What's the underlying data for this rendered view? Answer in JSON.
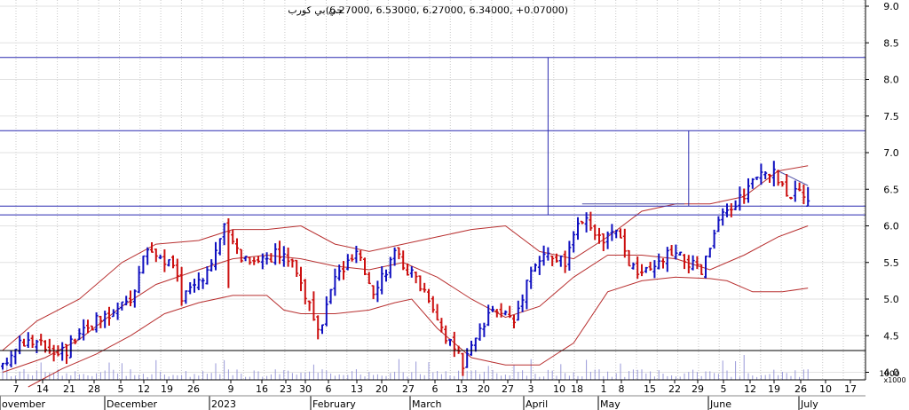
{
  "header": {
    "instrument": "جي بي كورب",
    "quote": "(6.27000, 6.53000, 6.27000, 6.34000, +0.07000)"
  },
  "chart_data": {
    "type": "ohlc-bar",
    "y_axis": {
      "ylim": [
        3.8,
        9.2
      ],
      "ticks": [
        4.0,
        4.5,
        5.0,
        5.5,
        6.0,
        6.5,
        7.0,
        7.5,
        8.0,
        8.5,
        9.0
      ],
      "tick_labels": [
        "4.0",
        "4.5",
        "5.0",
        "5.5",
        "6.0",
        "6.5",
        "7.0",
        "7.5",
        "8.0",
        "8.5",
        "9.0"
      ],
      "position": "right"
    },
    "volume_axis": {
      "label": "x1000",
      "top_label": "1000"
    },
    "x_axis": {
      "day_labels": [
        "7",
        "14",
        "21",
        "28",
        "5",
        "12",
        "19",
        "26",
        "9",
        "16",
        "23",
        "30",
        "6",
        "13",
        "20",
        "27",
        "6",
        "13",
        "20",
        "27",
        "3",
        "10",
        "18",
        "1",
        "8",
        "15",
        "22",
        "29",
        "5",
        "12",
        "19",
        "26",
        "10",
        "17"
      ],
      "month_labels": [
        "ovember",
        "December",
        "2023",
        "February",
        "March",
        "April",
        "May",
        "June",
        "July"
      ]
    },
    "horizontal_lines": [
      8.3,
      7.3,
      6.27,
      6.15
    ],
    "vertical_segments": [
      {
        "x_bar": 128,
        "y_from": 6.15,
        "y_to": 8.3
      },
      {
        "x_bar": 161,
        "y_from": 6.27,
        "y_to": 7.3
      }
    ],
    "trend_segments": [
      {
        "from": [
          182,
          6.75
        ],
        "to": [
          189,
          6.55
        ]
      },
      {
        "from": [
          136,
          6.3
        ],
        "to": [
          160,
          6.3
        ]
      }
    ],
    "bollinger": {
      "upper": [
        [
          0,
          4.3
        ],
        [
          8,
          4.7
        ],
        [
          18,
          5.0
        ],
        [
          28,
          5.5
        ],
        [
          36,
          5.75
        ],
        [
          46,
          5.8
        ],
        [
          54,
          5.95
        ],
        [
          62,
          5.95
        ],
        [
          70,
          6.0
        ],
        [
          78,
          5.75
        ],
        [
          86,
          5.65
        ],
        [
          94,
          5.75
        ],
        [
          102,
          5.85
        ],
        [
          110,
          5.95
        ],
        [
          118,
          6.0
        ],
        [
          126,
          5.65
        ],
        [
          134,
          5.55
        ],
        [
          142,
          5.85
        ],
        [
          150,
          6.2
        ],
        [
          158,
          6.3
        ],
        [
          166,
          6.3
        ],
        [
          174,
          6.4
        ],
        [
          182,
          6.75
        ],
        [
          189,
          6.82
        ]
      ],
      "middle": [
        [
          0,
          4.0
        ],
        [
          10,
          4.2
        ],
        [
          18,
          4.45
        ],
        [
          28,
          4.9
        ],
        [
          36,
          5.2
        ],
        [
          46,
          5.4
        ],
        [
          54,
          5.55
        ],
        [
          62,
          5.6
        ],
        [
          70,
          5.55
        ],
        [
          78,
          5.45
        ],
        [
          86,
          5.4
        ],
        [
          94,
          5.5
        ],
        [
          102,
          5.3
        ],
        [
          110,
          5.0
        ],
        [
          118,
          4.75
        ],
        [
          126,
          4.9
        ],
        [
          134,
          5.3
        ],
        [
          142,
          5.6
        ],
        [
          150,
          5.6
        ],
        [
          158,
          5.55
        ],
        [
          166,
          5.4
        ],
        [
          174,
          5.6
        ],
        [
          182,
          5.85
        ],
        [
          189,
          6.0
        ]
      ],
      "lower": [
        [
          6,
          3.8
        ],
        [
          14,
          4.05
        ],
        [
          22,
          4.25
        ],
        [
          30,
          4.5
        ],
        [
          38,
          4.8
        ],
        [
          46,
          4.95
        ],
        [
          54,
          5.05
        ],
        [
          62,
          5.05
        ],
        [
          66,
          4.85
        ],
        [
          70,
          4.8
        ],
        [
          78,
          4.8
        ],
        [
          86,
          4.85
        ],
        [
          92,
          4.95
        ],
        [
          96,
          5.0
        ],
        [
          102,
          4.6
        ],
        [
          110,
          4.2
        ],
        [
          118,
          4.1
        ],
        [
          126,
          4.1
        ],
        [
          134,
          4.4
        ],
        [
          142,
          5.1
        ],
        [
          150,
          5.25
        ],
        [
          158,
          5.3
        ],
        [
          166,
          5.28
        ],
        [
          170,
          5.25
        ],
        [
          176,
          5.1
        ],
        [
          183,
          5.1
        ],
        [
          189,
          5.15
        ]
      ]
    },
    "ohlc_bars_count": 190,
    "last_bar": {
      "open": 6.27,
      "high": 6.53,
      "low": 6.27,
      "close": 6.34,
      "change": 0.07
    },
    "colors": {
      "up": "#1010c0",
      "down": "#cc1010",
      "band": "#b83030",
      "line": "#2a2ab0",
      "grid": "#c8c8c8"
    }
  }
}
